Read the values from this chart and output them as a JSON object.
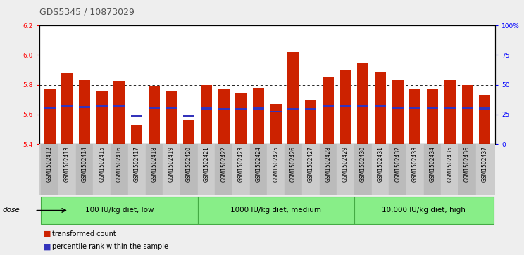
{
  "title": "GDS5345 / 10873029",
  "samples": [
    "GSM1502412",
    "GSM1502413",
    "GSM1502414",
    "GSM1502415",
    "GSM1502416",
    "GSM1502417",
    "GSM1502418",
    "GSM1502419",
    "GSM1502420",
    "GSM1502421",
    "GSM1502422",
    "GSM1502423",
    "GSM1502424",
    "GSM1502425",
    "GSM1502426",
    "GSM1502427",
    "GSM1502428",
    "GSM1502429",
    "GSM1502430",
    "GSM1502431",
    "GSM1502432",
    "GSM1502433",
    "GSM1502434",
    "GSM1502435",
    "GSM1502436",
    "GSM1502437"
  ],
  "bar_tops": [
    5.77,
    5.88,
    5.83,
    5.76,
    5.82,
    5.53,
    5.79,
    5.76,
    5.56,
    5.8,
    5.77,
    5.74,
    5.78,
    5.67,
    6.02,
    5.7,
    5.85,
    5.9,
    5.95,
    5.89,
    5.83,
    5.77,
    5.77,
    5.83,
    5.8,
    5.73
  ],
  "blue_markers": [
    5.645,
    5.655,
    5.65,
    5.655,
    5.655,
    5.59,
    5.645,
    5.645,
    5.59,
    5.64,
    5.635,
    5.635,
    5.64,
    5.62,
    5.635,
    5.635,
    5.655,
    5.655,
    5.655,
    5.655,
    5.645,
    5.645,
    5.645,
    5.645,
    5.645,
    5.64
  ],
  "ymin": 5.4,
  "ymax": 6.2,
  "yticks_left": [
    5.4,
    5.6,
    5.8,
    6.0,
    6.2
  ],
  "right_yticks_pct": [
    0,
    25,
    50,
    75,
    100
  ],
  "right_yticklabels": [
    "0",
    "25",
    "50",
    "75",
    "100%"
  ],
  "bar_color": "#cc2200",
  "blue_color": "#3333bb",
  "group_labels": [
    "100 IU/kg diet, low",
    "1000 IU/kg diet, medium",
    "10,000 IU/kg diet, high"
  ],
  "group_starts": [
    0,
    9,
    18
  ],
  "group_ends": [
    8,
    17,
    25
  ],
  "group_color": "#88ee88",
  "group_border": "#44aa44",
  "dose_label": "dose",
  "legend_items": [
    "transformed count",
    "percentile rank within the sample"
  ],
  "bg_color": "#eeeeee",
  "plot_bg": "#ffffff",
  "xtick_bg": "#cccccc",
  "title_color": "#555555"
}
